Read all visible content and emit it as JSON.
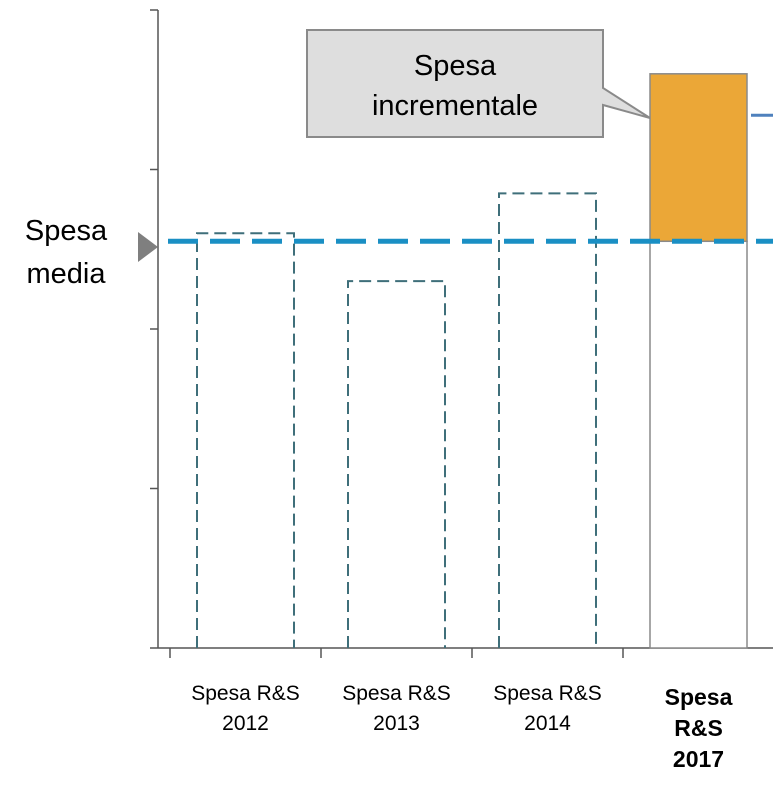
{
  "chart_data": {
    "type": "bar",
    "categories": [
      {
        "lines": [
          "Spesa R&S",
          "2012"
        ],
        "bold": false
      },
      {
        "lines": [
          "Spesa R&S",
          "2013"
        ],
        "bold": false
      },
      {
        "lines": [
          "Spesa R&S",
          "2014"
        ],
        "bold": false
      },
      {
        "lines": [
          "Spesa",
          "R&S",
          "2017"
        ],
        "bold": true
      }
    ],
    "values": [
      2.6,
      2.3,
      2.85,
      3.6
    ],
    "average": 2.55,
    "incremental_base": 2.55,
    "ylim": [
      0,
      4
    ],
    "ytick_count": 4,
    "title": "",
    "xlabel": "",
    "ylabel": "",
    "average_label": [
      "Spesa",
      "media"
    ],
    "callout_label": [
      "Spesa",
      "incrementale"
    ],
    "colors": {
      "dashed_bar": "#3f6f7a",
      "average_line": "#1a8fc4",
      "incremental": "#eba737",
      "solid_bar_stroke": "#8a8a8a",
      "callout_fill": "#dedede",
      "callout_stroke": "#8a8a8a",
      "axis": "#555555",
      "pointer": "#7f7f7f",
      "side_line": "#4f81bd"
    }
  }
}
